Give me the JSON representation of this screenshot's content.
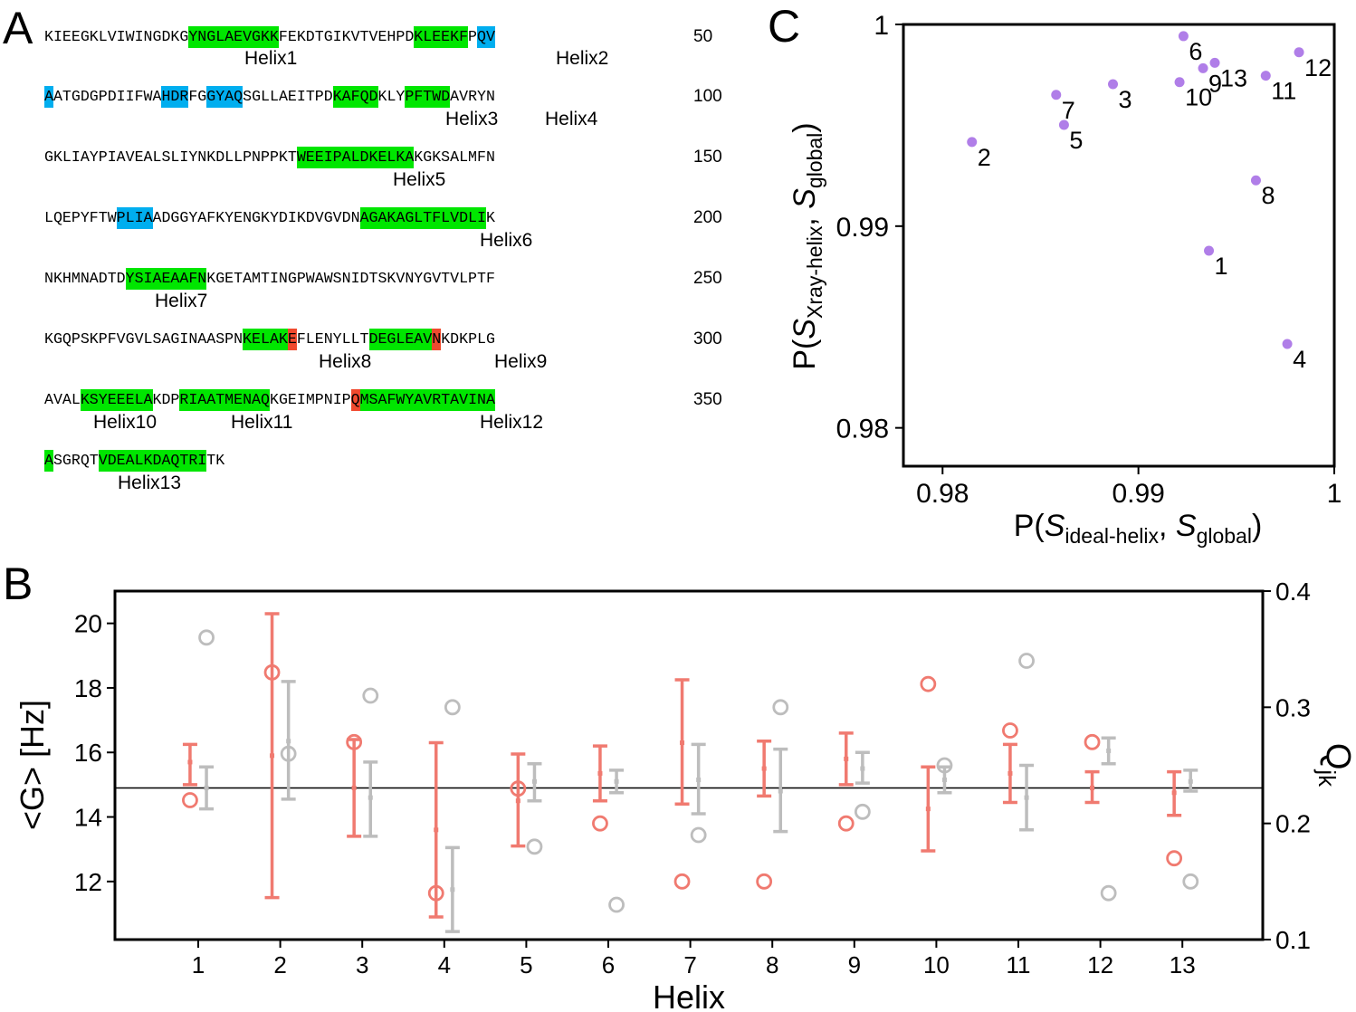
{
  "figure": {
    "panel_a_label": "A",
    "panel_b_label": "B",
    "panel_c_label": "C"
  },
  "sequence": {
    "lines": [
      {
        "number": "50",
        "segments": [
          {
            "text": "KIEEGKLVIWINGDKG"
          },
          {
            "text": "YNGLAEVGKK",
            "hl": "green"
          },
          {
            "text": "FEKDTGIKVTVEHPD"
          },
          {
            "text": "KLEEKF",
            "hl": "green"
          },
          {
            "text": "P"
          },
          {
            "text": "QV",
            "hl": "blue"
          }
        ]
      },
      {
        "number": "100",
        "segments": [
          {
            "text": "A",
            "hl": "blue"
          },
          {
            "text": "ATGDGPDIIFWA"
          },
          {
            "text": "HDR",
            "hl": "blue"
          },
          {
            "text": "FG"
          },
          {
            "text": "GYAQ",
            "hl": "blue"
          },
          {
            "text": "SGLLAEITPD"
          },
          {
            "text": "KAFQD",
            "hl": "green"
          },
          {
            "text": "KLY"
          },
          {
            "text": "PFTWD",
            "hl": "green"
          },
          {
            "text": "AVRYN"
          }
        ]
      },
      {
        "number": "150",
        "segments": [
          {
            "text": "GKLIAYPIAVEALSLIYNKDLLPNPPKT"
          },
          {
            "text": "WEEIPALDKELKA",
            "hl": "green"
          },
          {
            "text": "KGKSALMFN"
          }
        ]
      },
      {
        "number": "200",
        "segments": [
          {
            "text": "LQEPYFTW"
          },
          {
            "text": "PLIA",
            "hl": "blue"
          },
          {
            "text": "ADGGYAFKYENGKYDIKDVGVDN"
          },
          {
            "text": "AGAKAGLTFLVDLI",
            "hl": "green"
          },
          {
            "text": "K"
          }
        ]
      },
      {
        "number": "250",
        "segments": [
          {
            "text": "NKHMNADTD"
          },
          {
            "text": "YSIAEAAFN",
            "hl": "green"
          },
          {
            "text": "KGETAMTINGPWAWSNIDTSKVNYGVTVLPTF"
          }
        ]
      },
      {
        "number": "300",
        "segments": [
          {
            "text": "KGQPSKPFVGVLSAGINAASPN"
          },
          {
            "text": "KELAK",
            "hl": "green"
          },
          {
            "text": "E",
            "hl": "red"
          },
          {
            "text": "FLENYLLT"
          },
          {
            "text": "DEGLEAV",
            "hl": "green"
          },
          {
            "text": "N",
            "hl": "red"
          },
          {
            "text": "KDKPLG"
          }
        ]
      },
      {
        "number": "350",
        "segments": [
          {
            "text": "AVAL"
          },
          {
            "text": "KSYEEELA",
            "hl": "green"
          },
          {
            "text": "KDP"
          },
          {
            "text": "RIAATMENAQ",
            "hl": "green"
          },
          {
            "text": "KGEIMPNIP"
          },
          {
            "text": "Q",
            "hl": "red"
          },
          {
            "text": "MSAFWYAVRTAVINA",
            "hl": "green"
          }
        ]
      },
      {
        "number": "",
        "segments": [
          {
            "text": "A",
            "hl": "green"
          },
          {
            "text": "SGRQT"
          },
          {
            "text": "VDEALKDAQTRI",
            "hl": "green"
          },
          {
            "text": "TK"
          }
        ]
      }
    ],
    "helix_labels": [
      "Helix1",
      "Helix2",
      "Helix3",
      "Helix4",
      "Helix5",
      "Helix6",
      "Helix7",
      "Helix8",
      "Helix9",
      "Helix10",
      "Helix11",
      "Helix12",
      "Helix13"
    ]
  },
  "colors": {
    "helix_green": "#00e600",
    "site_blue": "#00aeef",
    "site_red": "#f04a2e",
    "salmon": "#f07a70",
    "gray": "#bdbdbd",
    "purple": "#b07ee8"
  },
  "chart_data": [
    {
      "panel": "B",
      "type": "scatter",
      "xlabel": "Helix",
      "ylabel_left": "<G> [Hz]",
      "ylabel_right_main": "Q",
      "ylabel_right_sub": "jk",
      "x_ticks": [
        "1",
        "2",
        "3",
        "4",
        "5",
        "6",
        "7",
        "8",
        "9",
        "10",
        "11",
        "12",
        "13"
      ],
      "y_left_ticks": [
        "12",
        "14",
        "16",
        "18",
        "20"
      ],
      "y_left_range": [
        10.2,
        21.0
      ],
      "y_right_ticks": [
        "0.1",
        "0.2",
        "0.3",
        "0.4"
      ],
      "y_right_range": [
        0.1,
        0.4
      ],
      "reference_line_y": 14.9,
      "series": [
        {
          "name": "G salmon",
          "axis": "left",
          "style": "errorbar",
          "color": "#f07a70",
          "offset": -0.1,
          "mean": [
            15.7,
            15.9,
            14.9,
            13.6,
            14.5,
            15.35,
            16.3,
            15.5,
            15.8,
            14.25,
            15.35,
            14.9,
            14.75
          ],
          "low": [
            15.0,
            11.5,
            13.4,
            10.9,
            13.1,
            14.5,
            14.4,
            14.65,
            15.0,
            12.95,
            14.45,
            14.45,
            14.05
          ],
          "high": [
            16.25,
            20.3,
            16.4,
            16.3,
            15.95,
            16.2,
            18.25,
            16.35,
            16.6,
            15.55,
            16.25,
            15.4,
            15.4
          ]
        },
        {
          "name": "G gray",
          "axis": "left",
          "style": "errorbar",
          "color": "#bdbdbd",
          "offset": 0.1,
          "mean": [
            14.9,
            16.35,
            14.6,
            11.75,
            15.1,
            15.1,
            15.15,
            14.8,
            15.5,
            15.15,
            14.6,
            16.05,
            15.1
          ],
          "low": [
            14.25,
            14.55,
            13.4,
            10.45,
            14.5,
            14.75,
            14.1,
            13.55,
            15.05,
            14.75,
            13.6,
            15.65,
            14.8
          ],
          "high": [
            15.55,
            18.2,
            15.7,
            13.05,
            15.65,
            15.45,
            16.25,
            16.1,
            16.0,
            15.55,
            15.6,
            16.45,
            15.45
          ]
        },
        {
          "name": "Q salmon",
          "axis": "right",
          "style": "open-circle",
          "color": "#f07a70",
          "offset": -0.1,
          "values": [
            0.22,
            0.33,
            0.27,
            0.14,
            0.23,
            0.2,
            0.15,
            0.15,
            0.2,
            0.32,
            0.28,
            0.27,
            0.17
          ]
        },
        {
          "name": "Q gray",
          "axis": "right",
          "style": "open-circle",
          "color": "#bdbdbd",
          "offset": 0.1,
          "values": [
            0.36,
            0.26,
            0.31,
            0.3,
            0.18,
            0.13,
            0.19,
            0.3,
            0.21,
            0.25,
            0.34,
            0.14,
            0.15
          ]
        }
      ]
    },
    {
      "panel": "C",
      "type": "scatter",
      "xlabel": {
        "prefix": "P(",
        "s1": "S",
        "s1_sub": "ideal-helix",
        "mid": ", ",
        "s2": "S",
        "s2_sub": "global",
        "suffix": ")"
      },
      "ylabel": {
        "prefix": "P(",
        "s1": "S",
        "s1_sub": "Xray-helix",
        "mid": ", ",
        "s2": "S",
        "s2_sub": "global",
        "suffix": ")"
      },
      "x_range": [
        0.978,
        1.0
      ],
      "y_range": [
        0.9781,
        1.0
      ],
      "x_ticks": [
        "0.98",
        "0.99",
        "1"
      ],
      "y_ticks": [
        "0.98",
        "0.99",
        "1"
      ],
      "points": [
        {
          "label": "1",
          "x": 0.9936,
          "y": 0.98878
        },
        {
          "label": "2",
          "x": 0.9815,
          "y": 0.99417
        },
        {
          "label": "3",
          "x": 0.9887,
          "y": 0.99704
        },
        {
          "label": "4",
          "x": 0.9976,
          "y": 0.98416
        },
        {
          "label": "5",
          "x": 0.9862,
          "y": 0.99502
        },
        {
          "label": "6",
          "x": 0.9923,
          "y": 0.99942
        },
        {
          "label": "7",
          "x": 0.9858,
          "y": 0.99651
        },
        {
          "label": "8",
          "x": 0.996,
          "y": 0.99227
        },
        {
          "label": "9",
          "x": 0.9933,
          "y": 0.99783
        },
        {
          "label": "10",
          "x": 0.9921,
          "y": 0.99714
        },
        {
          "label": "11",
          "x": 0.9965,
          "y": 0.99746
        },
        {
          "label": "12",
          "x": 0.9982,
          "y": 0.99862
        },
        {
          "label": "13",
          "x": 0.9939,
          "y": 0.9981
        }
      ]
    }
  ]
}
